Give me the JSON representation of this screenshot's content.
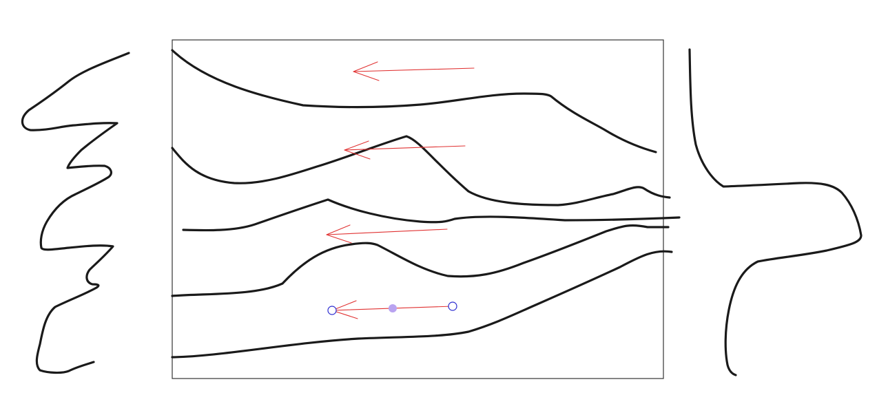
{
  "canvas": {
    "background": "#ffffff",
    "ink_color": "#1a1a1a",
    "frame_color": "#333333",
    "arrow_color": "#e03030",
    "handle_stroke_color": "#2a2ad0",
    "handle_fill_color": "#b9a3f0"
  },
  "strokes": {
    "left_zigzag": "freehand-stroke",
    "right_bracket": "freehand-stroke",
    "curves": [
      "wave-line-1",
      "wave-line-2",
      "wave-line-3",
      "wave-line-4",
      "wave-line-5"
    ]
  },
  "arrows": {
    "count": 4,
    "direction": "left",
    "selected_index": 3
  }
}
